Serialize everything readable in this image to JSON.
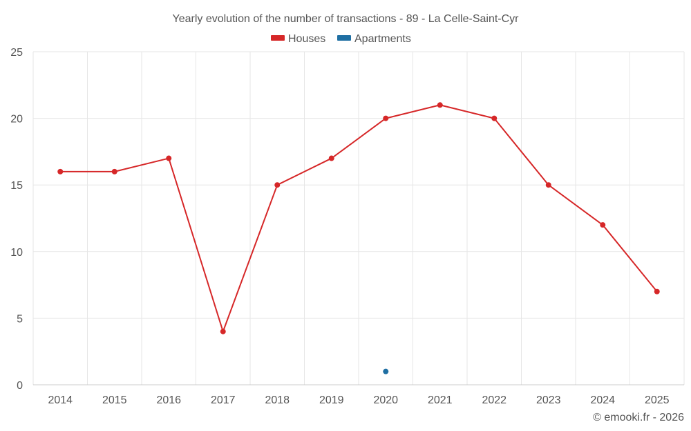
{
  "chart_data": {
    "type": "line",
    "title": "Yearly evolution of the number of transactions - 89 - La Celle-Saint-Cyr",
    "categories": [
      "2014",
      "2015",
      "2016",
      "2017",
      "2018",
      "2019",
      "2020",
      "2021",
      "2022",
      "2023",
      "2024",
      "2025"
    ],
    "series": [
      {
        "name": "Houses",
        "color": "#d62728",
        "values": [
          16,
          16,
          17,
          4,
          15,
          17,
          20,
          21,
          20,
          15,
          12,
          7
        ]
      },
      {
        "name": "Apartments",
        "color": "#1f6fa3",
        "values": [
          null,
          null,
          null,
          null,
          null,
          null,
          1,
          null,
          null,
          null,
          null,
          null
        ]
      }
    ],
    "ylim": [
      0,
      25
    ],
    "yticks": [
      0,
      5,
      10,
      15,
      20,
      25
    ],
    "grid": true,
    "legend": "top-center",
    "xlabel": "",
    "ylabel": ""
  },
  "credit": "© emooki.fr - 2026"
}
